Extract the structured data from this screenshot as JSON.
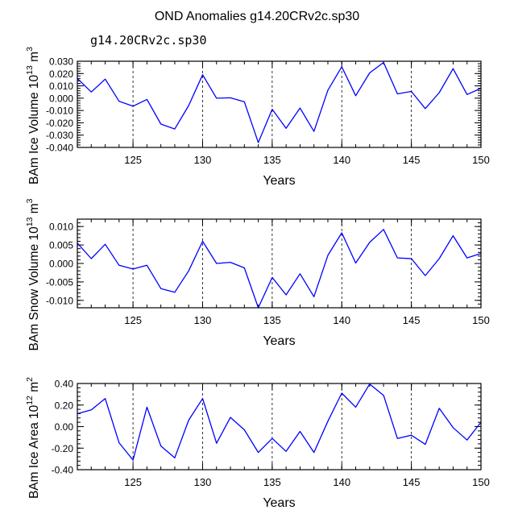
{
  "title": "OND Anomalies g14.20CRv2c.sp30",
  "legend_label": "g14.20CRv2c.sp30",
  "colors": {
    "line": "#0000ff",
    "legend_text": "#3f48cc",
    "axis": "#000000",
    "grid": "#000000"
  },
  "chart_data": [
    {
      "type": "line",
      "name": "ice-volume",
      "ylabel": "BAm Ice Volume",
      "unit_base": "10",
      "unit_exp": "13",
      "unit_symbol": "m",
      "unit_sym_exp": "3",
      "xlabel": "Years",
      "xlim": [
        121,
        150
      ],
      "ylim": [
        -0.04,
        0.03
      ],
      "xticks": [
        125,
        130,
        135,
        140,
        145,
        150
      ],
      "yticks": [
        0.03,
        0.02,
        0.01,
        0.0,
        -0.01,
        -0.02,
        -0.03,
        -0.04
      ],
      "ytick_labels": [
        "0.030",
        "0.020",
        "0.010",
        "0.000",
        "-0.010",
        "-0.020",
        "-0.030",
        "-0.040"
      ],
      "x": [
        121,
        122,
        123,
        124,
        125,
        126,
        127,
        128,
        129,
        130,
        131,
        132,
        133,
        134,
        135,
        136,
        137,
        138,
        139,
        140,
        141,
        142,
        143,
        144,
        145,
        146,
        147,
        148,
        149,
        150
      ],
      "series": [
        {
          "name": "g14.20CRv2c.sp30",
          "values": [
            0.016,
            0.005,
            0.0155,
            -0.0025,
            -0.0065,
            -0.001,
            -0.021,
            -0.025,
            -0.006,
            0.019,
            0.0,
            0.0003,
            -0.003,
            -0.036,
            -0.009,
            -0.0245,
            -0.008,
            -0.027,
            0.0065,
            0.0255,
            0.002,
            0.0205,
            0.029,
            0.0035,
            0.0055,
            -0.0085,
            0.0045,
            0.024,
            0.003,
            0.008
          ]
        }
      ]
    },
    {
      "type": "line",
      "name": "snow-volume",
      "ylabel": "BAm Snow Volume",
      "unit_base": "10",
      "unit_exp": "13",
      "unit_symbol": "m",
      "unit_sym_exp": "3",
      "xlabel": "Years",
      "xlim": [
        121,
        150
      ],
      "ylim": [
        -0.012,
        0.012
      ],
      "xticks": [
        125,
        130,
        135,
        140,
        145,
        150
      ],
      "yticks": [
        0.01,
        0.005,
        0.0,
        -0.005,
        -0.01
      ],
      "ytick_labels": [
        "0.010",
        "0.005",
        "0.000",
        "-0.005",
        "-0.010"
      ],
      "x": [
        121,
        122,
        123,
        124,
        125,
        126,
        127,
        128,
        129,
        130,
        131,
        132,
        133,
        134,
        135,
        136,
        137,
        138,
        139,
        140,
        141,
        142,
        143,
        144,
        145,
        146,
        147,
        148,
        149,
        150
      ],
      "series": [
        {
          "name": "g14.20CRv2c.sp30",
          "values": [
            0.0055,
            0.0013,
            0.0052,
            -0.0005,
            -0.0015,
            -0.0005,
            -0.0068,
            -0.0078,
            -0.002,
            0.006,
            0.0,
            0.0003,
            -0.0012,
            -0.012,
            -0.0038,
            -0.0085,
            -0.0028,
            -0.009,
            0.0022,
            0.0083,
            0.0001,
            0.0057,
            0.0092,
            0.0015,
            0.0013,
            -0.0033,
            0.0013,
            0.0075,
            0.0015,
            0.0027
          ]
        }
      ]
    },
    {
      "type": "line",
      "name": "ice-area",
      "ylabel": "BAm Ice Area",
      "unit_base": "10",
      "unit_exp": "12",
      "unit_symbol": "m",
      "unit_sym_exp": "2",
      "xlabel": "Years",
      "xlim": [
        121,
        150
      ],
      "ylim": [
        -0.4,
        0.4
      ],
      "xticks": [
        125,
        130,
        135,
        140,
        145,
        150
      ],
      "yticks": [
        0.4,
        0.2,
        0.0,
        -0.2,
        -0.4
      ],
      "ytick_labels": [
        "0.40",
        "0.20",
        "0.00",
        "-0.20",
        "-0.40"
      ],
      "x": [
        121,
        122,
        123,
        124,
        125,
        126,
        127,
        128,
        129,
        130,
        131,
        132,
        133,
        134,
        135,
        136,
        137,
        138,
        139,
        140,
        141,
        142,
        143,
        144,
        145,
        146,
        147,
        148,
        149,
        150
      ],
      "series": [
        {
          "name": "g14.20CRv2c.sp30",
          "values": [
            0.12,
            0.155,
            0.26,
            -0.15,
            -0.31,
            0.18,
            -0.18,
            -0.29,
            0.06,
            0.26,
            -0.155,
            0.085,
            -0.03,
            -0.24,
            -0.11,
            -0.23,
            -0.045,
            -0.24,
            0.05,
            0.31,
            0.18,
            0.395,
            0.29,
            -0.11,
            -0.08,
            -0.165,
            0.17,
            -0.01,
            -0.125,
            0.04
          ]
        }
      ]
    }
  ]
}
